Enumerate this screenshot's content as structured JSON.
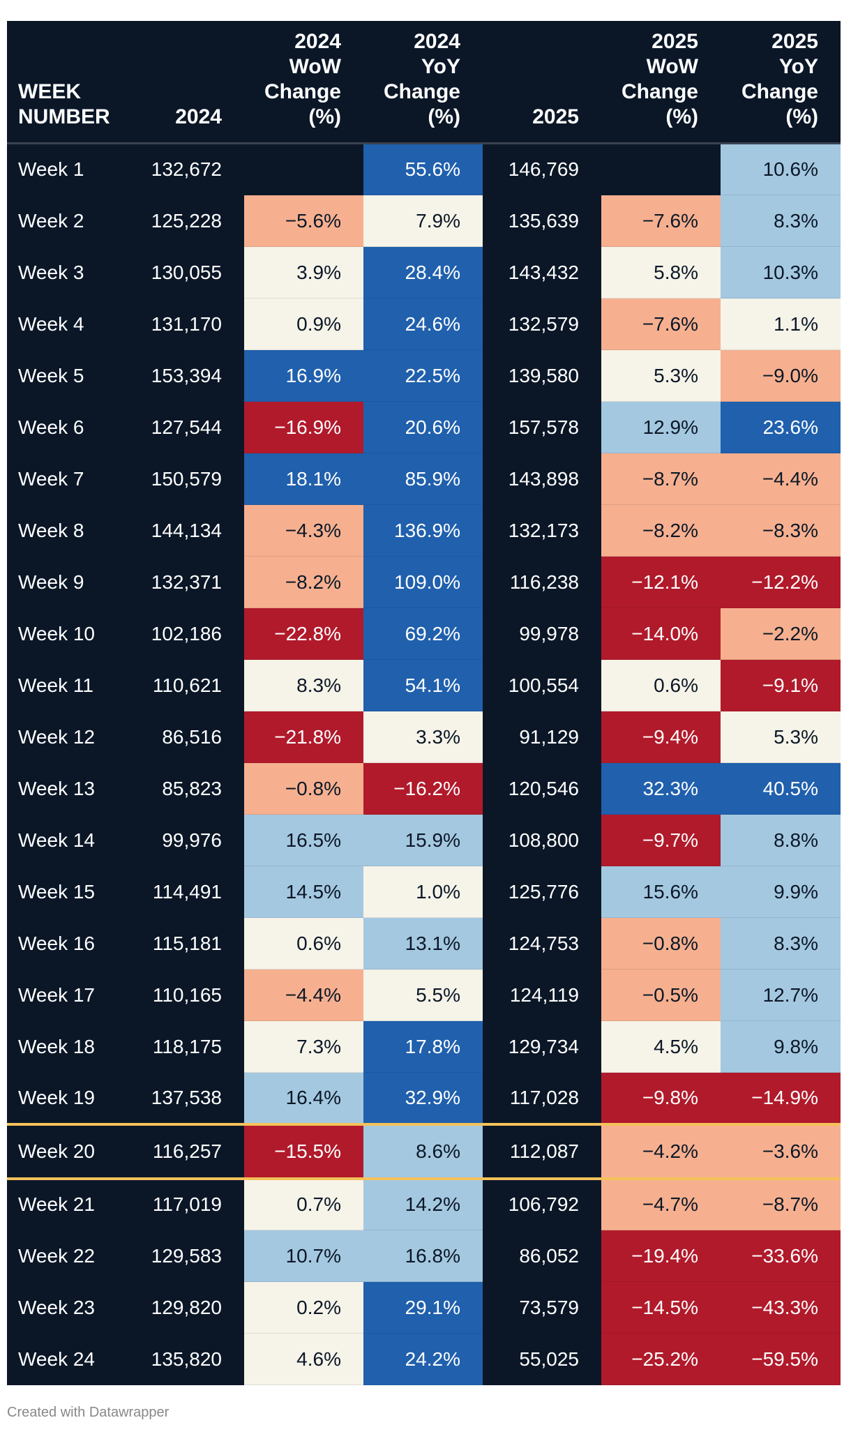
{
  "headers": {
    "week": [
      "WEEK",
      "NUMBER"
    ],
    "y2024": [
      "2024"
    ],
    "wow2024": [
      "2024",
      "WoW",
      "Change",
      "(%)"
    ],
    "yoy2024": [
      "2024",
      "YoY",
      "Change",
      "(%)"
    ],
    "y2025": [
      "2025"
    ],
    "wow2025": [
      "2025",
      "WoW",
      "Change",
      "(%)"
    ],
    "yoy2025": [
      "2025",
      "YoY",
      "Change",
      "(%)"
    ]
  },
  "highlight_week": "Week 20",
  "rows": [
    {
      "week": "Week 1",
      "v2024": "132,672",
      "wow2024": "",
      "yoy2024": "55.6%",
      "v2025": "146,769",
      "wow2025": "",
      "yoy2025": "10.6%"
    },
    {
      "week": "Week 2",
      "v2024": "125,228",
      "wow2024": "−5.6%",
      "yoy2024": "7.9%",
      "v2025": "135,639",
      "wow2025": "−7.6%",
      "yoy2025": "8.3%"
    },
    {
      "week": "Week 3",
      "v2024": "130,055",
      "wow2024": "3.9%",
      "yoy2024": "28.4%",
      "v2025": "143,432",
      "wow2025": "5.8%",
      "yoy2025": "10.3%"
    },
    {
      "week": "Week 4",
      "v2024": "131,170",
      "wow2024": "0.9%",
      "yoy2024": "24.6%",
      "v2025": "132,579",
      "wow2025": "−7.6%",
      "yoy2025": "1.1%"
    },
    {
      "week": "Week 5",
      "v2024": "153,394",
      "wow2024": "16.9%",
      "yoy2024": "22.5%",
      "v2025": "139,580",
      "wow2025": "5.3%",
      "yoy2025": "−9.0%"
    },
    {
      "week": "Week 6",
      "v2024": "127,544",
      "wow2024": "−16.9%",
      "yoy2024": "20.6%",
      "v2025": "157,578",
      "wow2025": "12.9%",
      "yoy2025": "23.6%"
    },
    {
      "week": "Week 7",
      "v2024": "150,579",
      "wow2024": "18.1%",
      "yoy2024": "85.9%",
      "v2025": "143,898",
      "wow2025": "−8.7%",
      "yoy2025": "−4.4%"
    },
    {
      "week": "Week 8",
      "v2024": "144,134",
      "wow2024": "−4.3%",
      "yoy2024": "136.9%",
      "v2025": "132,173",
      "wow2025": "−8.2%",
      "yoy2025": "−8.3%"
    },
    {
      "week": "Week 9",
      "v2024": "132,371",
      "wow2024": "−8.2%",
      "yoy2024": "109.0%",
      "v2025": "116,238",
      "wow2025": "−12.1%",
      "yoy2025": "−12.2%"
    },
    {
      "week": "Week 10",
      "v2024": "102,186",
      "wow2024": "−22.8%",
      "yoy2024": "69.2%",
      "v2025": "99,978",
      "wow2025": "−14.0%",
      "yoy2025": "−2.2%"
    },
    {
      "week": "Week 11",
      "v2024": "110,621",
      "wow2024": "8.3%",
      "yoy2024": "54.1%",
      "v2025": "100,554",
      "wow2025": "0.6%",
      "yoy2025": "−9.1%"
    },
    {
      "week": "Week 12",
      "v2024": "86,516",
      "wow2024": "−21.8%",
      "yoy2024": "3.3%",
      "v2025": "91,129",
      "wow2025": "−9.4%",
      "yoy2025": "5.3%"
    },
    {
      "week": "Week 13",
      "v2024": "85,823",
      "wow2024": "−0.8%",
      "yoy2024": "−16.2%",
      "v2025": "120,546",
      "wow2025": "32.3%",
      "yoy2025": "40.5%"
    },
    {
      "week": "Week 14",
      "v2024": "99,976",
      "wow2024": "16.5%",
      "yoy2024": "15.9%",
      "v2025": "108,800",
      "wow2025": "−9.7%",
      "yoy2025": "8.8%"
    },
    {
      "week": "Week 15",
      "v2024": "114,491",
      "wow2024": "14.5%",
      "yoy2024": "1.0%",
      "v2025": "125,776",
      "wow2025": "15.6%",
      "yoy2025": "9.9%"
    },
    {
      "week": "Week 16",
      "v2024": "115,181",
      "wow2024": "0.6%",
      "yoy2024": "13.1%",
      "v2025": "124,753",
      "wow2025": "−0.8%",
      "yoy2025": "8.3%"
    },
    {
      "week": "Week 17",
      "v2024": "110,165",
      "wow2024": "−4.4%",
      "yoy2024": "5.5%",
      "v2025": "124,119",
      "wow2025": "−0.5%",
      "yoy2025": "12.7%"
    },
    {
      "week": "Week 18",
      "v2024": "118,175",
      "wow2024": "7.3%",
      "yoy2024": "17.8%",
      "v2025": "129,734",
      "wow2025": "4.5%",
      "yoy2025": "9.8%"
    },
    {
      "week": "Week 19",
      "v2024": "137,538",
      "wow2024": "16.4%",
      "yoy2024": "32.9%",
      "v2025": "117,028",
      "wow2025": "−9.8%",
      "yoy2025": "−14.9%"
    },
    {
      "week": "Week 20",
      "v2024": "116,257",
      "wow2024": "−15.5%",
      "yoy2024": "8.6%",
      "v2025": "112,087",
      "wow2025": "−4.2%",
      "yoy2025": "−3.6%"
    },
    {
      "week": "Week 21",
      "v2024": "117,019",
      "wow2024": "0.7%",
      "yoy2024": "14.2%",
      "v2025": "106,792",
      "wow2025": "−4.7%",
      "yoy2025": "−8.7%"
    },
    {
      "week": "Week 22",
      "v2024": "129,583",
      "wow2024": "10.7%",
      "yoy2024": "16.8%",
      "v2025": "86,052",
      "wow2025": "−19.4%",
      "yoy2025": "−33.6%"
    },
    {
      "week": "Week 23",
      "v2024": "129,820",
      "wow2024": "0.2%",
      "yoy2024": "29.1%",
      "v2025": "73,579",
      "wow2025": "−14.5%",
      "yoy2025": "−43.3%"
    },
    {
      "week": "Week 24",
      "v2024": "135,820",
      "wow2024": "4.6%",
      "yoy2024": "24.2%",
      "v2025": "55,025",
      "wow2025": "−25.2%",
      "yoy2025": "−59.5%"
    }
  ],
  "colors": {
    "dark_red": "#b11a2b",
    "salmon": "#f6b08f",
    "cream": "#f6f3e8",
    "light_blue": "#a4c8e0",
    "dark_blue": "#2060ad",
    "navy": "#0b1727",
    "highlight": "#f4c25a"
  },
  "footer": "Created with Datawrapper"
}
